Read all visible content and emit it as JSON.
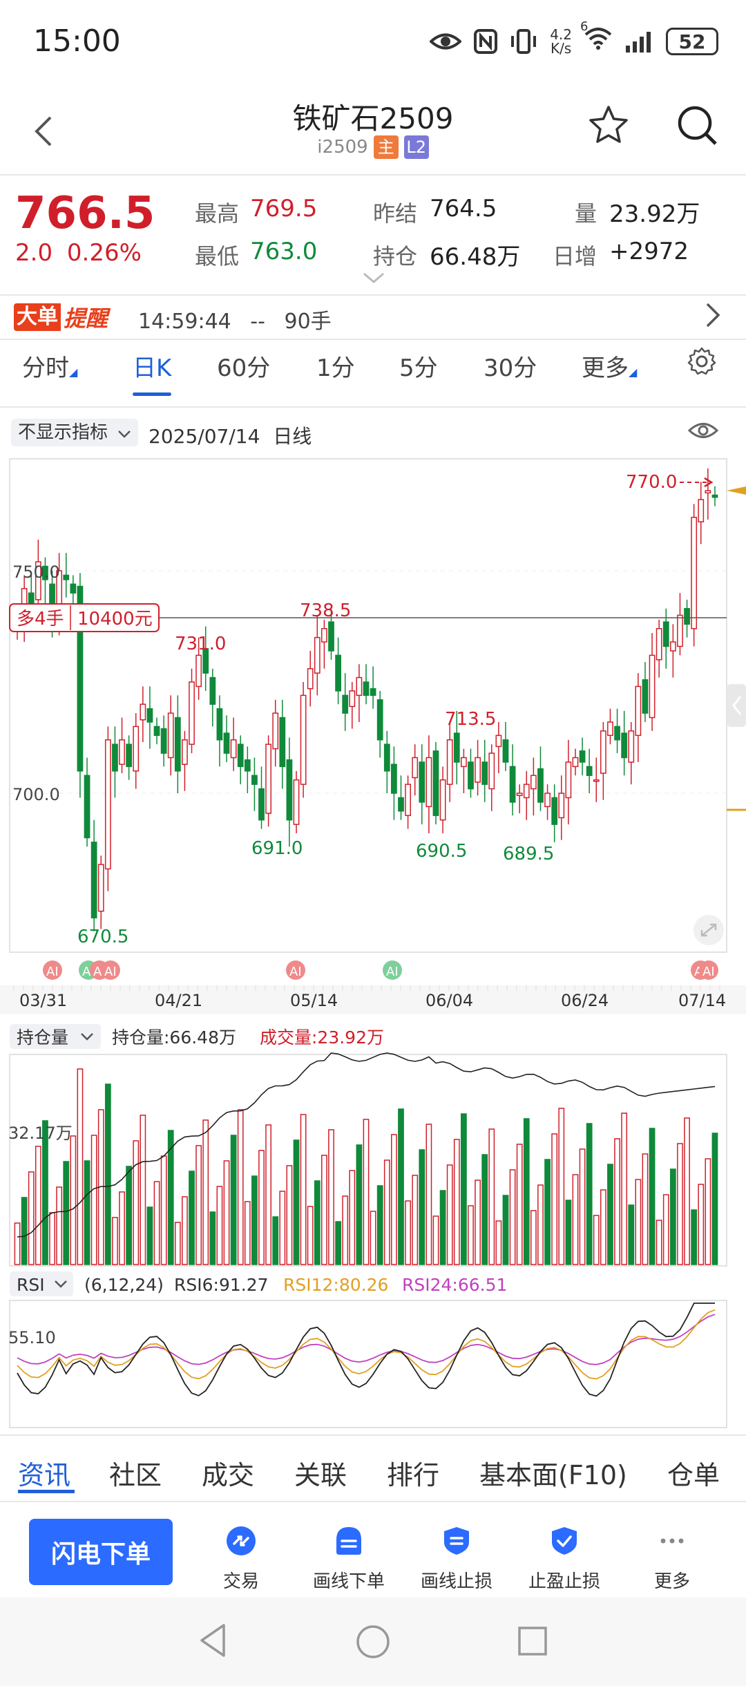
{
  "status_bar": {
    "time": "15:00",
    "speed_value": "4.2",
    "speed_unit": "K/s",
    "network_sup": "6",
    "battery": "52"
  },
  "header": {
    "title": "铁矿石2509",
    "code": "i2509",
    "tag_main": "主",
    "tag_l2": "L2"
  },
  "quote": {
    "price": "766.5",
    "change": "2.0",
    "change_pct": "0.26%",
    "high_label": "最高",
    "high": "769.5",
    "low_label": "最低",
    "low": "763.0",
    "prev_close_label": "昨结",
    "prev_close": "764.5",
    "open_interest_label": "持仓",
    "open_interest": "66.48万",
    "volume_label": "量",
    "volume": "23.92万",
    "daily_change_label": "日增",
    "daily_change": "+2972"
  },
  "alert": {
    "logo_a": "大单",
    "logo_b": "提醒",
    "time": "14:59:44",
    "dash": "--",
    "size": "90手"
  },
  "period_tabs": [
    {
      "label": "分时",
      "dropdown": true
    },
    {
      "label": "日K",
      "active": true
    },
    {
      "label": "60分"
    },
    {
      "label": "1分"
    },
    {
      "label": "5分"
    },
    {
      "label": "30分"
    },
    {
      "label": "更多",
      "dropdown": true
    }
  ],
  "chart_toolbar": {
    "indicator": "不显示指标",
    "date": "2025/07/14",
    "period": "日线"
  },
  "main_chart": {
    "y_labels": [
      "750.0",
      "700.0"
    ],
    "position_tag": "多4手",
    "position_value": "10400元",
    "high_mark": "770.0",
    "annotations": [
      "738.5",
      "731.0",
      "713.5",
      "691.0",
      "690.5",
      "689.5",
      "670.5"
    ],
    "ai_badge": "AI",
    "x_labels": [
      "03/31",
      "04/21",
      "05/14",
      "06/04",
      "06/24",
      "07/14"
    ]
  },
  "volume_panel": {
    "indicator": "持仓量",
    "oi_text": "持仓量:66.48万",
    "vol_text": "成交量:23.92万",
    "y_label": "32.17万"
  },
  "rsi_panel": {
    "indicator": "RSI",
    "params": "(6,12,24)",
    "rsi6": "RSI6:91.27",
    "rsi12": "RSI12:80.26",
    "rsi24": "RSI24:66.51",
    "y_label": "55.10"
  },
  "bottom_tabs": [
    {
      "label": "资讯",
      "active": true
    },
    {
      "label": "社区"
    },
    {
      "label": "成交"
    },
    {
      "label": "关联"
    },
    {
      "label": "排行"
    },
    {
      "label": "基本面(F10)"
    },
    {
      "label": "仓单"
    }
  ],
  "actions": {
    "flash_order": "闪电下单",
    "items": [
      {
        "label": "交易",
        "icon": "trade-icon"
      },
      {
        "label": "画线下单",
        "icon": "draw-order-icon"
      },
      {
        "label": "画线止损",
        "icon": "draw-stop-icon"
      },
      {
        "label": "止盈止损",
        "icon": "take-profit-icon"
      },
      {
        "label": "更多",
        "icon": "more-icon"
      }
    ]
  },
  "colors": {
    "up": "#d01f2a",
    "down": "#0f8a3a",
    "accent": "#1f5fd8",
    "rsi12": "#e0a020",
    "rsi24": "#c040c0"
  }
}
